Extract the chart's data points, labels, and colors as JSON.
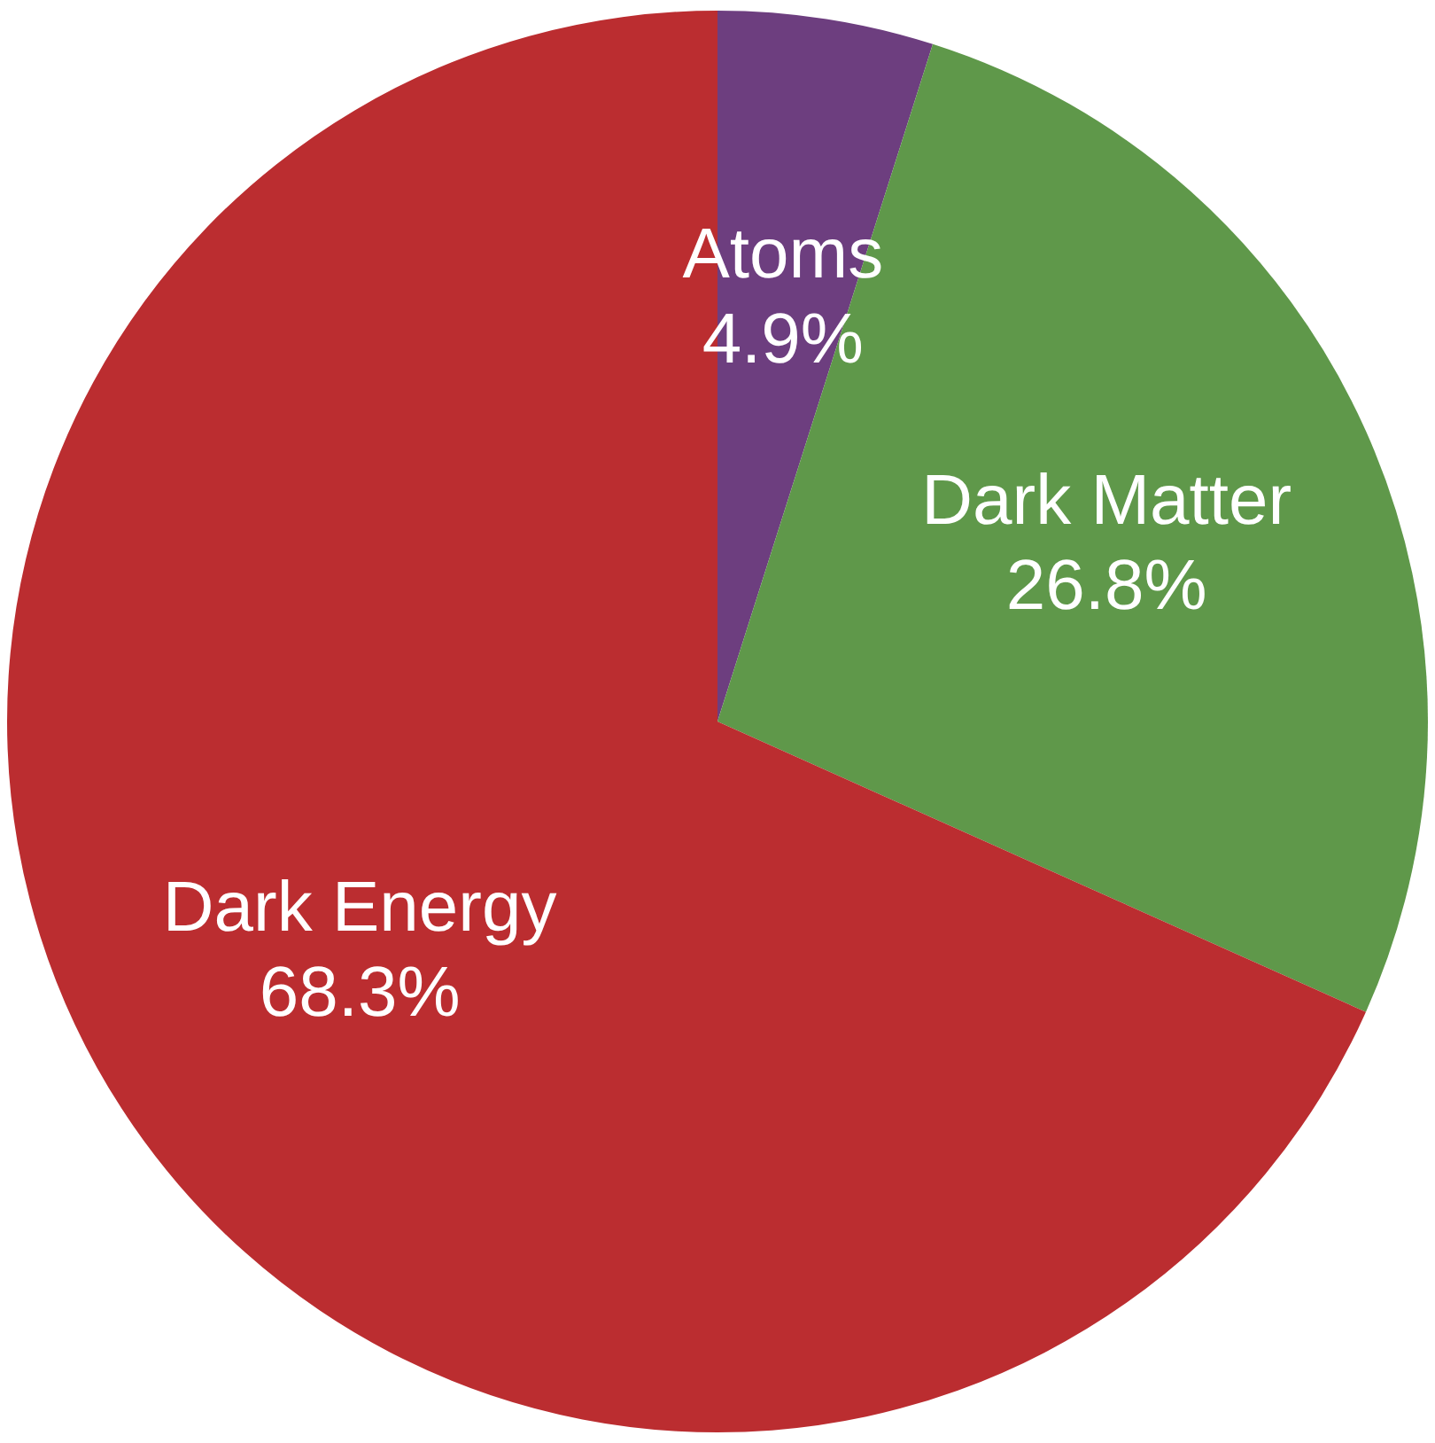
{
  "chart_data": {
    "type": "pie",
    "categories": [
      "Atoms",
      "Dark Matter",
      "Dark Energy"
    ],
    "values": [
      4.9,
      26.8,
      68.3
    ],
    "colors": [
      "#6d3e7f",
      "#5f984a",
      "#bb2d30"
    ],
    "value_labels": [
      "4.9%",
      "26.8%",
      "68.3%"
    ],
    "legend": false
  }
}
